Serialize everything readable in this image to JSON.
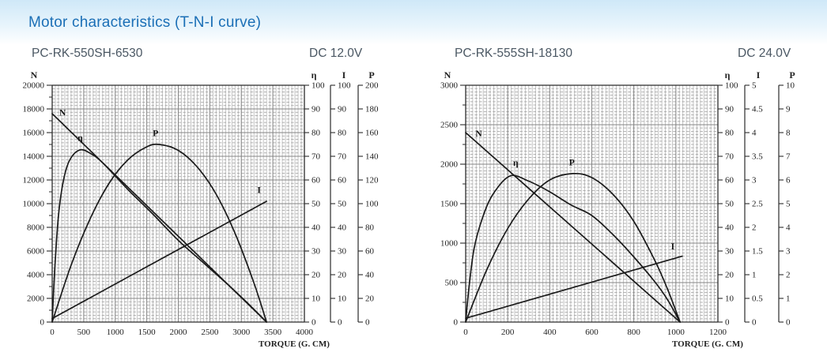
{
  "page": {
    "title": "Motor characteristics (T-N-I curve)"
  },
  "colors": {
    "title": "#1b6fb6",
    "header_gradient_top": "#cfe8f8",
    "subtitle": "#4a5763",
    "curve": "#1b1b1b",
    "axis": "#2b2b2b",
    "grid_major": "#858585",
    "grid_minor_v": "#b3b3b3",
    "grid_minor_h": "#9a9a9a",
    "tick_text": "#222222"
  },
  "chart_data": [
    {
      "type": "line",
      "model": "PC-RK-550SH-6530",
      "voltage": "DC 12.0V",
      "x_axis": {
        "label": "TORQUE (G. CM)",
        "max": 4000,
        "ticks": [
          0,
          500,
          1000,
          1500,
          2000,
          2500,
          3000,
          3500,
          4000
        ]
      },
      "axes": {
        "n": {
          "label": "N",
          "max": 20000,
          "ticks": [
            0,
            2000,
            4000,
            6000,
            8000,
            10000,
            12000,
            14000,
            16000,
            18000,
            20000
          ],
          "minor_tick_step": 1000
        },
        "eta": {
          "label": "η",
          "max": 100,
          "ticks": [
            0,
            10,
            20,
            30,
            40,
            50,
            60,
            70,
            80,
            90,
            100
          ]
        },
        "i": {
          "label": "I",
          "max": 100,
          "ticks": [
            0,
            10,
            20,
            30,
            40,
            50,
            60,
            70,
            80,
            90,
            100
          ]
        },
        "p": {
          "label": "P",
          "max": 200,
          "ticks": [
            0,
            20,
            40,
            60,
            80,
            100,
            120,
            140,
            160,
            180,
            200
          ]
        }
      },
      "series": [
        {
          "name": "N",
          "axis": "n",
          "label_pos": [
            165,
            17450
          ],
          "points": [
            [
              0,
              17600
            ],
            [
              1700,
              8800
            ],
            [
              3400,
              0
            ]
          ]
        },
        {
          "name": "η",
          "axis": "eta",
          "label_pos": [
            445,
            76.5
          ],
          "points": [
            [
              0,
              0
            ],
            [
              40,
              22
            ],
            [
              100,
              45
            ],
            [
              180,
              60
            ],
            [
              280,
              68.5
            ],
            [
              440,
              72.7
            ],
            [
              620,
              71
            ],
            [
              810,
              67
            ],
            [
              1200,
              56
            ],
            [
              1600,
              45.5
            ],
            [
              2000,
              34.5
            ],
            [
              2400,
              25
            ],
            [
              2800,
              15.5
            ],
            [
              3100,
              8
            ],
            [
              3400,
              0
            ]
          ]
        },
        {
          "name": "P",
          "axis": "p",
          "label_pos": [
            1640,
            157
          ],
          "points": [
            [
              0,
              0
            ],
            [
              300,
              48
            ],
            [
              600,
              87
            ],
            [
              900,
              117
            ],
            [
              1200,
              137
            ],
            [
              1500,
              148
            ],
            [
              1700,
              150
            ],
            [
              2000,
              145
            ],
            [
              2300,
              131
            ],
            [
              2600,
              108
            ],
            [
              2900,
              75
            ],
            [
              3200,
              33
            ],
            [
              3400,
              0
            ]
          ]
        },
        {
          "name": "I",
          "axis": "i",
          "label_pos": [
            3280,
            54.5
          ],
          "points": [
            [
              0,
              1.5
            ],
            [
              3400,
              51
            ]
          ]
        }
      ]
    },
    {
      "type": "line",
      "model": "PC-RK-555SH-18130",
      "voltage": "DC 24.0V",
      "x_axis": {
        "label": "TORQUE (G. CM)",
        "max": 1200,
        "ticks": [
          0,
          200,
          400,
          600,
          800,
          1000,
          1200
        ]
      },
      "axes": {
        "n": {
          "label": "N",
          "max": 3000,
          "ticks": [
            0,
            500,
            1000,
            1500,
            2000,
            2500,
            3000
          ],
          "minor_tick_step": 250
        },
        "eta": {
          "label": "η",
          "max": 100,
          "ticks": [
            0,
            10,
            20,
            30,
            40,
            50,
            60,
            70,
            80,
            90,
            100
          ]
        },
        "i": {
          "label": "I",
          "max": 5,
          "ticks": [
            0,
            0.5,
            1,
            1.5,
            2,
            2.5,
            3,
            3.5,
            4,
            4.5,
            5
          ]
        },
        "p": {
          "label": "P",
          "max": 10,
          "ticks": [
            0,
            1,
            2,
            3,
            4,
            5,
            6,
            7,
            8,
            9,
            10
          ]
        }
      },
      "series": [
        {
          "name": "N",
          "axis": "n",
          "label_pos": [
            62,
            2350
          ],
          "points": [
            [
              0,
              2400
            ],
            [
              510,
              1200
            ],
            [
              1020,
              0
            ]
          ]
        },
        {
          "name": "η",
          "axis": "eta",
          "label_pos": [
            238,
            66
          ],
          "points": [
            [
              0,
              0
            ],
            [
              15,
              14
            ],
            [
              40,
              31
            ],
            [
              80,
              44
            ],
            [
              130,
              54
            ],
            [
              211,
              61.7
            ],
            [
              300,
              59.5
            ],
            [
              400,
              55
            ],
            [
              500,
              49.5
            ],
            [
              600,
              45
            ],
            [
              700,
              37
            ],
            [
              800,
              27.5
            ],
            [
              900,
              17
            ],
            [
              960,
              9.5
            ],
            [
              1020,
              0
            ]
          ]
        },
        {
          "name": "P",
          "axis": "p",
          "label_pos": [
            505,
            6.62
          ],
          "points": [
            [
              0,
              0
            ],
            [
              100,
              2.2
            ],
            [
              200,
              3.95
            ],
            [
              300,
              5.2
            ],
            [
              400,
              6.0
            ],
            [
              510,
              6.27
            ],
            [
              600,
              6.1
            ],
            [
              700,
              5.4
            ],
            [
              800,
              4.25
            ],
            [
              900,
              2.6
            ],
            [
              960,
              1.4
            ],
            [
              1020,
              0
            ]
          ]
        },
        {
          "name": "I",
          "axis": "i",
          "label_pos": [
            985,
            1.53
          ],
          "points": [
            [
              0,
              0.08
            ],
            [
              1030,
              1.39
            ]
          ]
        }
      ]
    }
  ]
}
